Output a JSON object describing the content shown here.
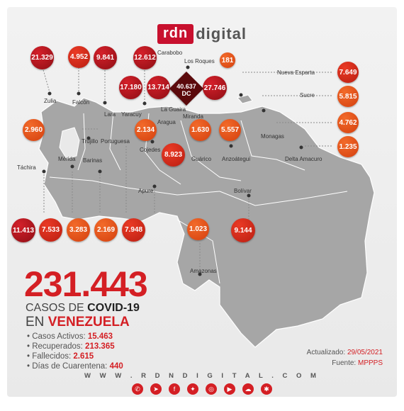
{
  "brand": {
    "logo_box": "rdn",
    "logo_text": "digital",
    "url": "W W W . R D N D I G I T A L . C O M"
  },
  "headline": {
    "total": "231.443",
    "line1_prefix": "CASOS DE",
    "line1_bold": "COVID-19",
    "line2_prefix": "EN",
    "line2_bold": "VENEZUELA"
  },
  "stats": [
    {
      "label": "Casos Activos:",
      "value": "15.463"
    },
    {
      "label": "Recuperados:",
      "value": "213.365"
    },
    {
      "label": "Fallecidos:",
      "value": "2.615"
    },
    {
      "label": "Días de Cuarentena:",
      "value": "440"
    }
  ],
  "updated": {
    "label": "Actualizado:",
    "date": "29/05/2021",
    "source_label": "Fuente:",
    "source": "MPPPS"
  },
  "dc": {
    "value": "40.637",
    "label": "DC"
  },
  "bubbles": [
    {
      "value": "21.329"
    },
    {
      "value": "4.952"
    },
    {
      "value": "9.841"
    },
    {
      "value": "12.612"
    },
    {
      "value": "181"
    },
    {
      "value": "17.180"
    },
    {
      "value": "13.714"
    },
    {
      "value": "27.746"
    },
    {
      "value": "7.649"
    },
    {
      "value": "5.815"
    },
    {
      "value": "4.762"
    },
    {
      "value": "1.235"
    },
    {
      "value": "2.960"
    },
    {
      "value": "2.134"
    },
    {
      "value": "1.630"
    },
    {
      "value": "5.557"
    },
    {
      "value": "8.923"
    },
    {
      "value": "11.413"
    },
    {
      "value": "7.533"
    },
    {
      "value": "3.283"
    },
    {
      "value": "2.169"
    },
    {
      "value": "7.948"
    },
    {
      "value": "1.023"
    },
    {
      "value": "9.144"
    }
  ],
  "states": {
    "zulia": "Zulia",
    "falcon": "Falcón",
    "lara": "Lara",
    "yaracuy": "Yaracuy",
    "carabobo": "Carabobo",
    "los_roques": "Los Roques",
    "la_guaira": "La Guaira",
    "aragua": "Aragua",
    "miranda": "Miranda",
    "nueva_esparta": "Nueva Esparta",
    "sucre": "Sucre",
    "monagas": "Monagas",
    "delta": "Delta Amacuro",
    "trujillo": "Trujillo",
    "portuguesa": "Portuguesa",
    "cojedes": "Cojedes",
    "guarico": "Guárico",
    "anzoategui": "Anzoátegui",
    "tachira": "Táchira",
    "merida": "Mérida",
    "barinas": "Barinas",
    "apure": "Apure",
    "bolivar": "Bolívar",
    "amazonas": "Amazonas"
  },
  "social_icons": [
    "whatsapp-icon",
    "telegram-icon",
    "facebook-icon",
    "twitter-icon",
    "instagram-icon",
    "youtube-icon",
    "soundcloud-icon",
    "radio-icon"
  ],
  "colors": {
    "accent": "#d41f24",
    "map": "#a6a6a6",
    "dc": "#5b0a0c"
  }
}
